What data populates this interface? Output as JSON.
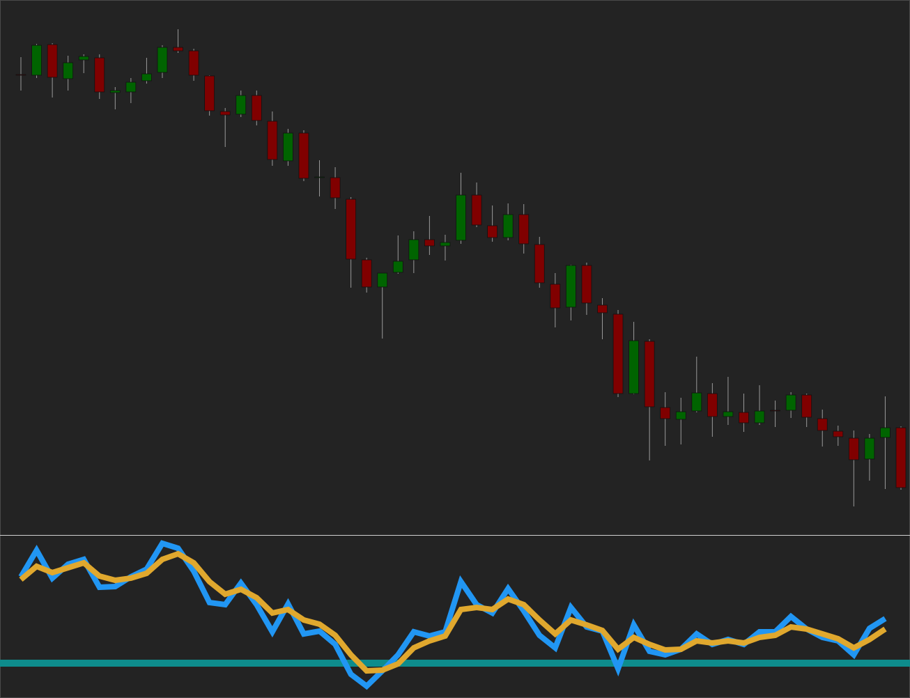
{
  "chart_data": [
    {
      "type": "candlestick",
      "up_color": "#006400",
      "down_color": "#800000",
      "wick_color": "#9a9a9a",
      "ylim": [
        0,
        770
      ],
      "open": [
        663,
        662,
        706,
        657,
        684,
        687,
        637,
        638,
        654,
        666,
        702,
        697,
        661,
        610,
        606,
        633,
        596,
        539,
        579,
        515,
        515,
        484,
        397,
        358,
        379,
        397,
        426,
        417,
        425,
        490,
        446,
        429,
        462,
        419,
        362,
        329,
        389,
        332,
        319,
        205,
        280,
        185,
        168,
        180,
        205,
        172,
        178,
        163,
        181,
        181,
        203,
        169,
        151,
        141,
        111,
        142,
        156
      ],
      "high": [
        688,
        707,
        708,
        690,
        692,
        692,
        645,
        658,
        687,
        705,
        728,
        700,
        662,
        615,
        640,
        640,
        610,
        585,
        583,
        540,
        530,
        487,
        400,
        378,
        432,
        438,
        460,
        433,
        522,
        508,
        475,
        478,
        477,
        430,
        378,
        390,
        393,
        342,
        325,
        308,
        283,
        207,
        199,
        258,
        220,
        229,
        205,
        217,
        195,
        207,
        205,
        182,
        159,
        152,
        147,
        201,
        158
      ],
      "low": [
        640,
        658,
        630,
        640,
        665,
        628,
        613,
        622,
        650,
        658,
        694,
        654,
        604,
        559,
        602,
        590,
        532,
        532,
        510,
        488,
        470,
        357,
        350,
        284,
        377,
        378,
        404,
        396,
        420,
        444,
        423,
        425,
        406,
        357,
        300,
        310,
        318,
        283,
        200,
        204,
        109,
        130,
        132,
        178,
        143,
        160,
        150,
        160,
        157,
        170,
        157,
        129,
        130,
        43,
        80,
        68,
        67
      ],
      "close": [
        662,
        705,
        659,
        680,
        689,
        638,
        640,
        652,
        664,
        702,
        697,
        662,
        611,
        605,
        633,
        597,
        541,
        579,
        514,
        516,
        486,
        398,
        358,
        378,
        395,
        426,
        417,
        422,
        490,
        447,
        429,
        462,
        420,
        364,
        328,
        389,
        335,
        321,
        205,
        281,
        186,
        169,
        179,
        206,
        172,
        179,
        163,
        180,
        180,
        203,
        171,
        152,
        143,
        110,
        141,
        156,
        70
      ]
    },
    {
      "type": "line",
      "ylim": [
        0,
        232
      ],
      "series": [
        {
          "color": "#2196f3",
          "values": [
            174,
            212,
            172,
            192,
            199,
            159,
            160,
            174,
            185,
            222,
            215,
            182,
            137,
            134,
            165,
            134,
            95,
            135,
            92,
            96,
            77,
            34,
            17,
            39,
            62,
            95,
            89,
            95,
            167,
            134,
            122,
            157,
            125,
            90,
            72,
            130,
            102,
            96,
            42,
            105,
            67,
            62,
            70,
            92,
            77,
            84,
            77,
            95,
            95,
            117,
            99,
            87,
            82,
            62,
            100,
            114,
            null
          ]
        },
        {
          "color": "#e0a82e",
          "values": [
            170,
            189,
            180,
            187,
            194,
            175,
            169,
            172,
            179,
            199,
            207,
            194,
            167,
            149,
            156,
            144,
            122,
            127,
            112,
            106,
            90,
            62,
            39,
            40,
            49,
            72,
            82,
            89,
            127,
            130,
            127,
            142,
            134,
            112,
            92,
            112,
            105,
            97,
            70,
            87,
            77,
            69,
            70,
            82,
            79,
            82,
            79,
            87,
            90,
            102,
            99,
            92,
            85,
            72,
            84,
            99,
            null
          ]
        }
      ],
      "levels": [
        50
      ],
      "level_color": "#0e8c8c"
    }
  ]
}
